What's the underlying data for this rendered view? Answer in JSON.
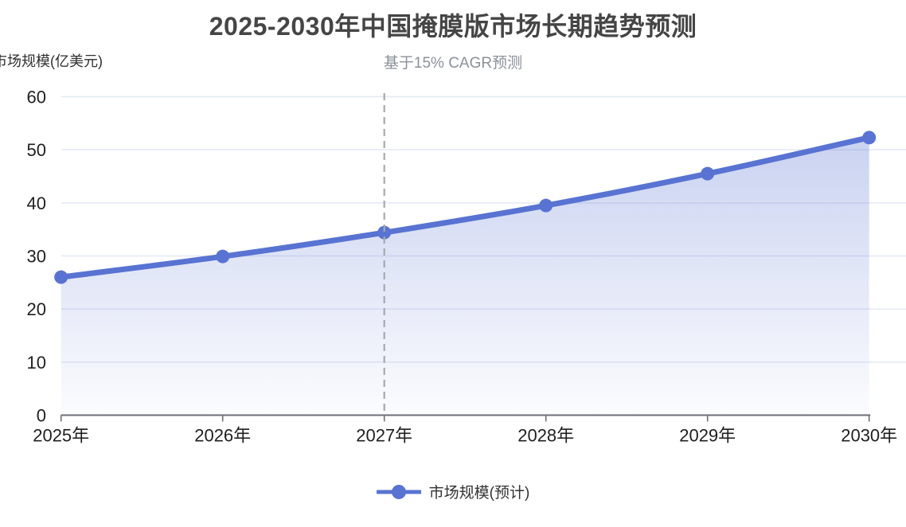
{
  "chart_data": {
    "type": "area",
    "title": "2025-2030年中国掩膜版市场长期趋势预测",
    "subtitle": "基于15% CAGR预测",
    "y_axis_name": "市场规模(亿美元)",
    "categories": [
      "2025年",
      "2026年",
      "2027年",
      "2028年",
      "2029年",
      "2030年"
    ],
    "series": [
      {
        "name": "市场规模(预计)",
        "values": [
          26,
          29.9,
          34.4,
          39.5,
          45.5,
          52.3
        ]
      }
    ],
    "ylim": [
      0,
      60
    ],
    "yticks": [
      0,
      10,
      20,
      30,
      40,
      50,
      60
    ],
    "grid": true,
    "smooth": true,
    "legend_position": "bottom",
    "annotations": [
      {
        "type": "vertical-dashed-line",
        "x": "2027年"
      }
    ],
    "colors": {
      "line": "#5873d2",
      "marker": "#5873d2",
      "area_top": "rgba(88,115,210,0.32)",
      "area_bottom": "rgba(88,115,210,0.02)",
      "gridline": "#e4e8f4",
      "dashed_line": "#a6a9af",
      "axis_line": "#6b6f77",
      "tick_label": "#1f1f1f",
      "title": "#454545",
      "subtitle": "#8b909a",
      "legend_text": "#333333"
    }
  }
}
